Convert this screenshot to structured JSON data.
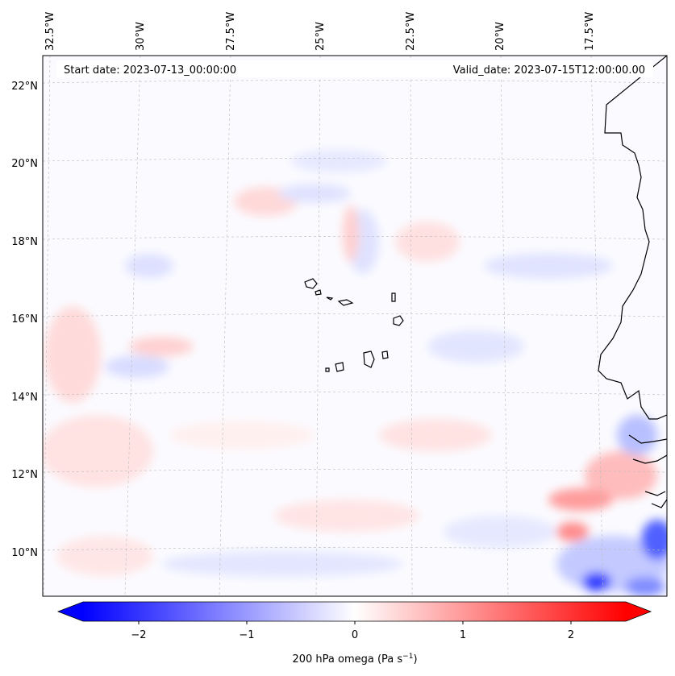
{
  "map": {
    "header": {
      "start_date": "Start date: 2023-07-13_00:00:00",
      "valid_date": "Valid_date: 2023-07-15T12:00:00.00"
    },
    "longitude_labels": [
      "32.5°W",
      "30°W",
      "27.5°W",
      "25°W",
      "22.5°W",
      "20°W",
      "17.5°W"
    ],
    "latitude_labels": [
      "22°N",
      "20°N",
      "18°N",
      "16°N",
      "14°N",
      "12°N",
      "10°N"
    ],
    "gridlines": true,
    "colormap": "bwr",
    "colors": {
      "negative": "#0000ff",
      "zero": "#ffffff",
      "positive": "#ff0000",
      "coastline": "#000000"
    }
  },
  "colorbar": {
    "ticks": [
      "−2",
      "−1",
      "0",
      "1",
      "2"
    ],
    "range": [
      -2.6,
      2.6
    ],
    "extend": "both",
    "label_main": "200 hPa omega (Pa s",
    "label_sup": "−1",
    "label_end": ")"
  }
}
